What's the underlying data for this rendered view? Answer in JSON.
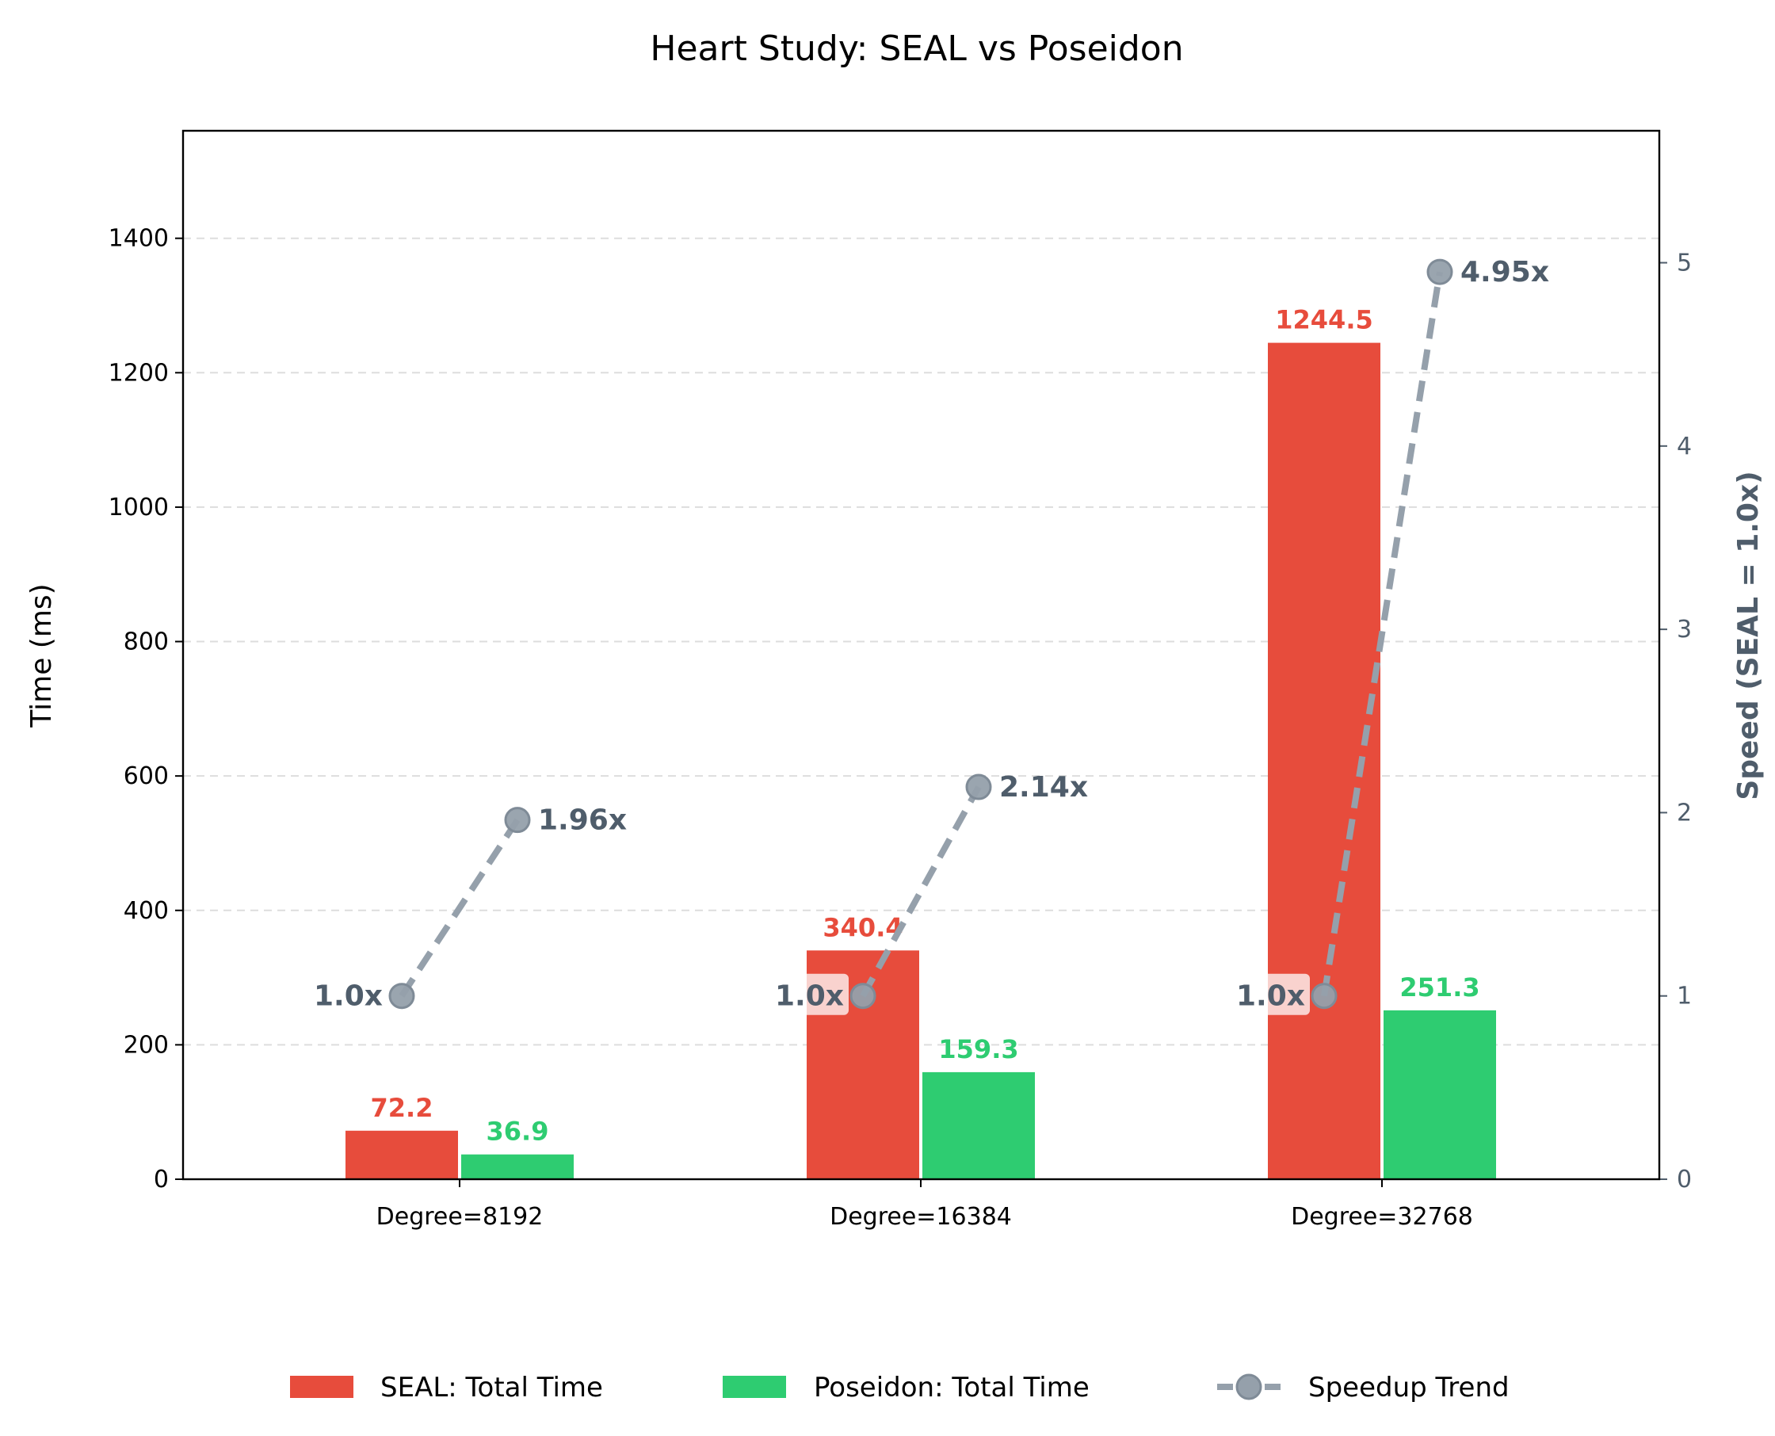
{
  "chart_data": {
    "type": "bar",
    "title": "Heart Study: SEAL vs Poseidon",
    "categories": [
      "Degree=8192",
      "Degree=16384",
      "Degree=32768"
    ],
    "ylabel": "Time (ms)",
    "ylim": [
      0,
      1560
    ],
    "yticks": [
      0,
      200,
      400,
      600,
      800,
      1000,
      1200,
      1400
    ],
    "y2label": "Speed (SEAL = 1.0x)",
    "y2lim": [
      0,
      5.72
    ],
    "y2ticks": [
      0,
      1,
      2,
      3,
      4,
      5
    ],
    "grid": "horizontal dashed",
    "legend_position": "bottom",
    "series": [
      {
        "name": "SEAL: Total Time",
        "axis": "left",
        "color": "#e74c3c",
        "values": [
          72.2,
          340.4,
          1244.5
        ],
        "labels": [
          "72.2",
          "340.4",
          "1244.5"
        ]
      },
      {
        "name": "Poseidon: Total Time",
        "axis": "left",
        "color": "#2ecc71",
        "values": [
          36.9,
          159.3,
          251.3
        ],
        "labels": [
          "36.9",
          "159.3",
          "251.3"
        ]
      }
    ],
    "speedup": {
      "name": "Speedup Trend",
      "axis": "right",
      "color": "#95a0ab",
      "pairs": [
        {
          "base": 1.0,
          "base_label": "1.0x",
          "speed": 1.96,
          "speed_label": "1.96x"
        },
        {
          "base": 1.0,
          "base_label": "1.0x",
          "speed": 2.14,
          "speed_label": "2.14x"
        },
        {
          "base": 1.0,
          "base_label": "1.0x",
          "speed": 4.95,
          "speed_label": "4.95x"
        }
      ]
    }
  }
}
